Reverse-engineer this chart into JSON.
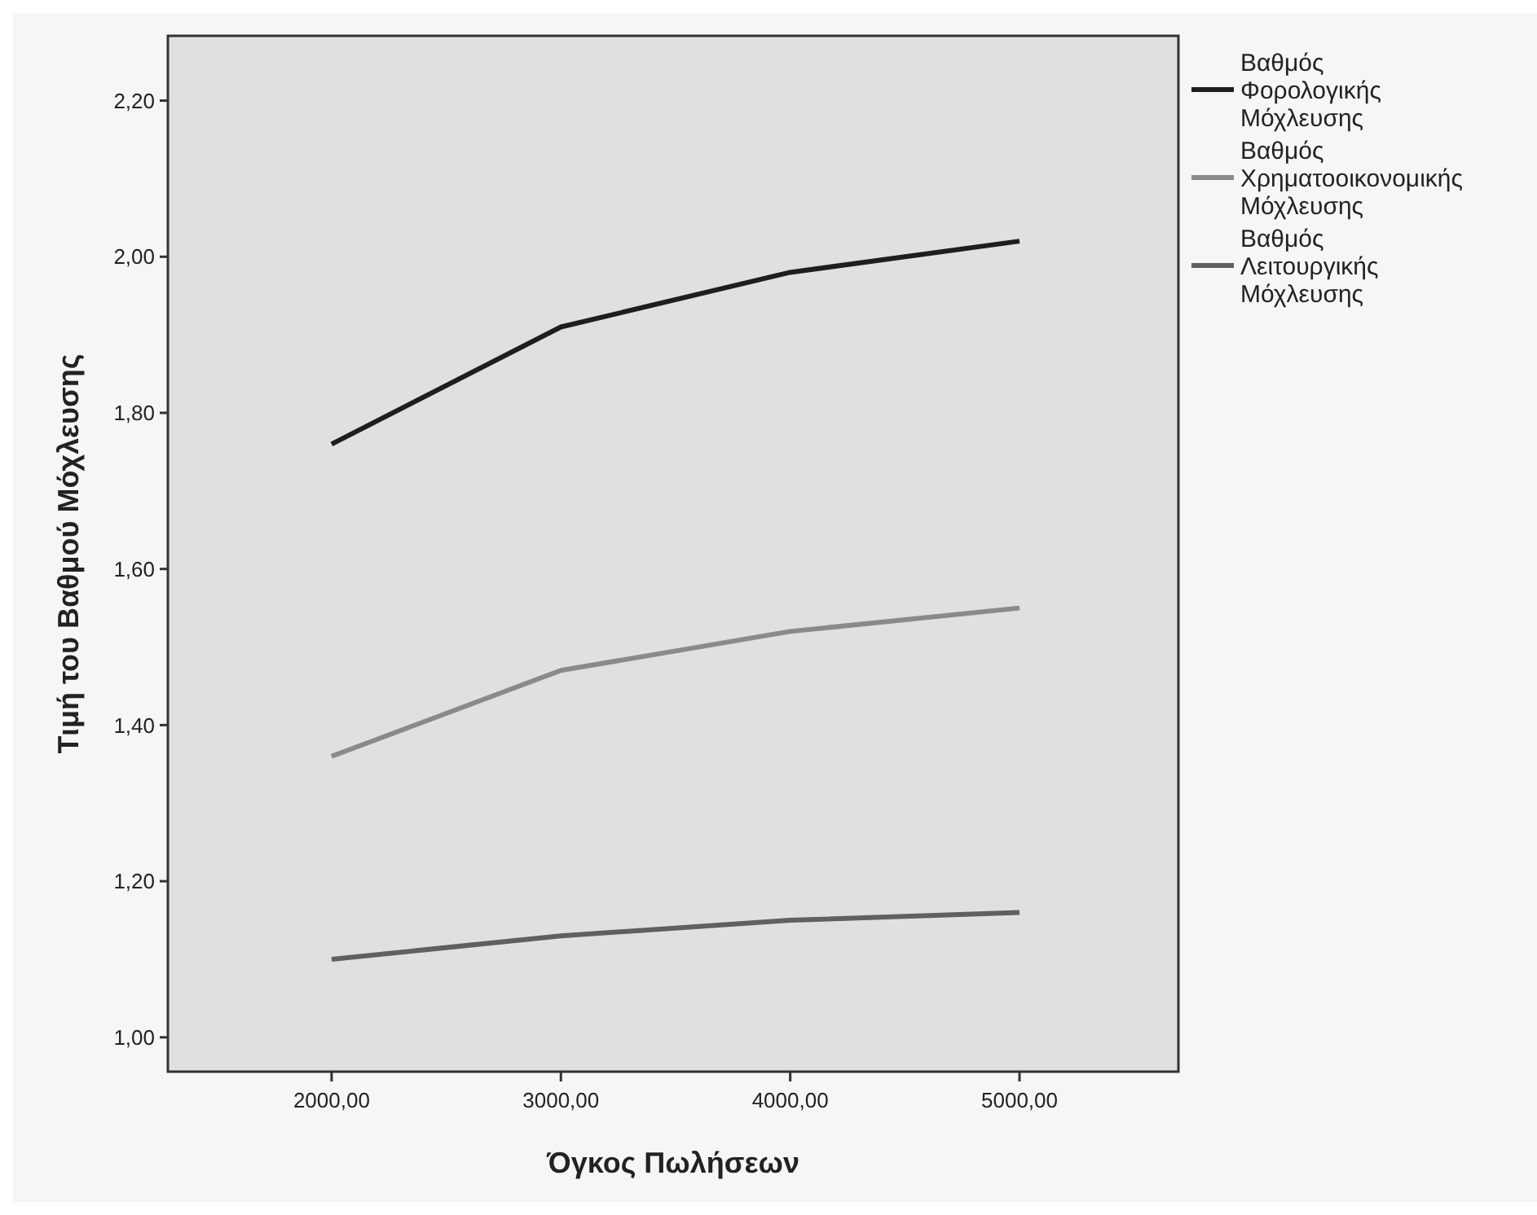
{
  "chart_data": {
    "type": "line",
    "xlabel": "Όγκος Πωλήσεων",
    "ylabel": "Τιμή του Βαθμού Μόχλευσης",
    "x": [
      2000,
      3000,
      4000,
      5000
    ],
    "xlim": [
      1286,
      5693
    ],
    "xticks": [
      {
        "value": 2000,
        "label": "2000,00"
      },
      {
        "value": 3000,
        "label": "3000,00"
      },
      {
        "value": 4000,
        "label": "4000,00"
      },
      {
        "value": 5000,
        "label": "5000,00"
      }
    ],
    "ylim": [
      0.956,
      2.283
    ],
    "yticks": [
      {
        "value": 1,
        "label": "1,00"
      },
      {
        "value": 1.2,
        "label": "1,20"
      },
      {
        "value": 1.4,
        "label": "1,40"
      },
      {
        "value": 1.6,
        "label": "1,60"
      },
      {
        "value": 1.8,
        "label": "1,80"
      },
      {
        "value": 2,
        "label": "2,00"
      },
      {
        "value": 2.2,
        "label": "2,20"
      }
    ],
    "series": [
      {
        "name": "Βαθμός Φορολογικής Μόχλευσης",
        "color": "#1e1e1e",
        "values": [
          1.76,
          1.91,
          1.98,
          2.02
        ]
      },
      {
        "name": "Βαθμός Χρηματοοικονομικής Μόχλευσης",
        "color": "#8a8a8a",
        "values": [
          1.36,
          1.47,
          1.52,
          1.55
        ]
      },
      {
        "name": "Βαθμός Λειτουργικής Μόχλευσης",
        "color": "#606060",
        "values": [
          1.1,
          1.13,
          1.15,
          1.16
        ]
      }
    ],
    "legend": "right",
    "grid": false,
    "marker": "none",
    "line_style": "solid"
  }
}
